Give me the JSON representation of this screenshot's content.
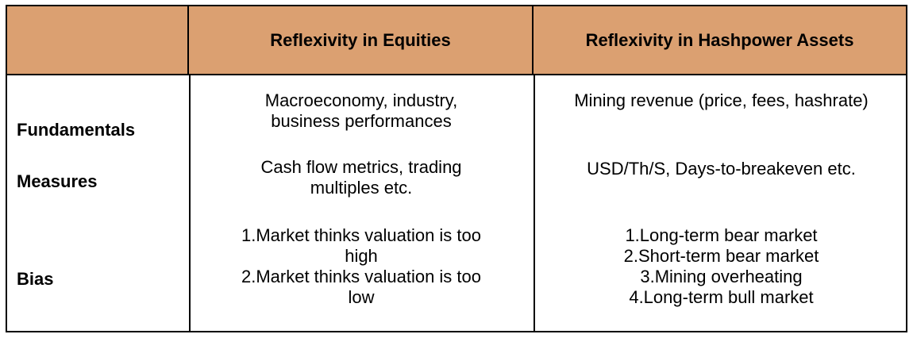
{
  "table": {
    "headers": [
      "",
      "Reflexivity in Equities",
      "Reflexivity in Hashpower Assets"
    ],
    "rows": [
      {
        "label": "Fundamentals",
        "equities": [
          "Macroeconomy, industry,",
          "business performances"
        ],
        "hashpower": [
          "Mining revenue (price, fees, hashrate)"
        ]
      },
      {
        "label": "Measures",
        "equities": [
          "Cash flow metrics, trading",
          "multiples etc."
        ],
        "hashpower": [
          "USD/Th/S, Days-to-breakeven etc."
        ]
      },
      {
        "label": "Bias",
        "equities": [
          "1.Market thinks valuation is too",
          "high",
          "2.Market thinks valuation is too",
          "low"
        ],
        "hashpower": [
          "1.Long-term bear market",
          "2.Short-term bear market",
          "3.Mining overheating",
          "4.Long-term bull market"
        ]
      }
    ]
  },
  "colors": {
    "header_bg": "#dba071",
    "border": "#000000",
    "text": "#000000"
  }
}
